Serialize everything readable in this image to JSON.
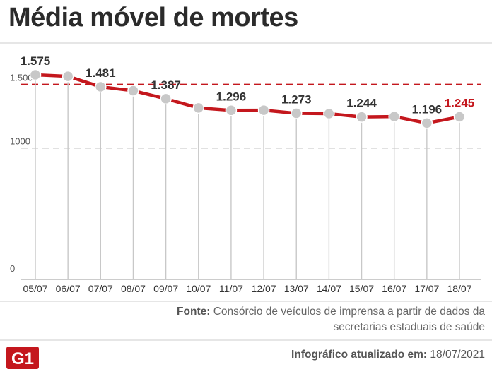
{
  "title": "Média móvel de mortes",
  "source": {
    "label": "Fonte:",
    "text": "Consórcio de veículos de imprensa a partir de dados da secretarias estaduais de saúde"
  },
  "footer": {
    "label": "Infográfico atualizado em:",
    "date": "18/07/2021",
    "logo_text": "G1"
  },
  "colors": {
    "line": "#c4171d",
    "marker": "#c8c8c8",
    "reference_line": "#c4171d",
    "highlight_label": "#c4171d"
  },
  "chart_data": {
    "type": "line",
    "title": "Média móvel de mortes",
    "categories": [
      "05/07",
      "06/07",
      "07/07",
      "08/07",
      "09/07",
      "10/07",
      "11/07",
      "12/07",
      "13/07",
      "14/07",
      "15/07",
      "16/07",
      "17/07",
      "18/07"
    ],
    "series": [
      {
        "values": [
          1575,
          1563,
          1481,
          1450,
          1387,
          1315,
          1296,
          1297,
          1273,
          1270,
          1244,
          1247,
          1196,
          1245
        ]
      }
    ],
    "data_labels": [
      {
        "category": "05/07",
        "text": "1.575"
      },
      {
        "category": "07/07",
        "text": "1.481"
      },
      {
        "category": "09/07",
        "text": "1.387"
      },
      {
        "category": "11/07",
        "text": "1.296"
      },
      {
        "category": "13/07",
        "text": "1.273"
      },
      {
        "category": "15/07",
        "text": "1.244"
      },
      {
        "category": "17/07",
        "text": "1.196"
      },
      {
        "category": "18/07",
        "text": "1.245",
        "highlight": true
      }
    ],
    "y_ticks": [
      {
        "value": 0,
        "label": "0"
      },
      {
        "value": 1000,
        "label": "1000"
      },
      {
        "value": 1500,
        "label": "1.500"
      }
    ],
    "reference_lines": [
      {
        "value": 1000,
        "style": "dashed",
        "color": "#888888"
      },
      {
        "value": 1500,
        "style": "dashed",
        "color": "#c4171d"
      }
    ],
    "ylim": [
      0,
      1575
    ],
    "grid": "vertical lines per category",
    "legend": "none"
  }
}
